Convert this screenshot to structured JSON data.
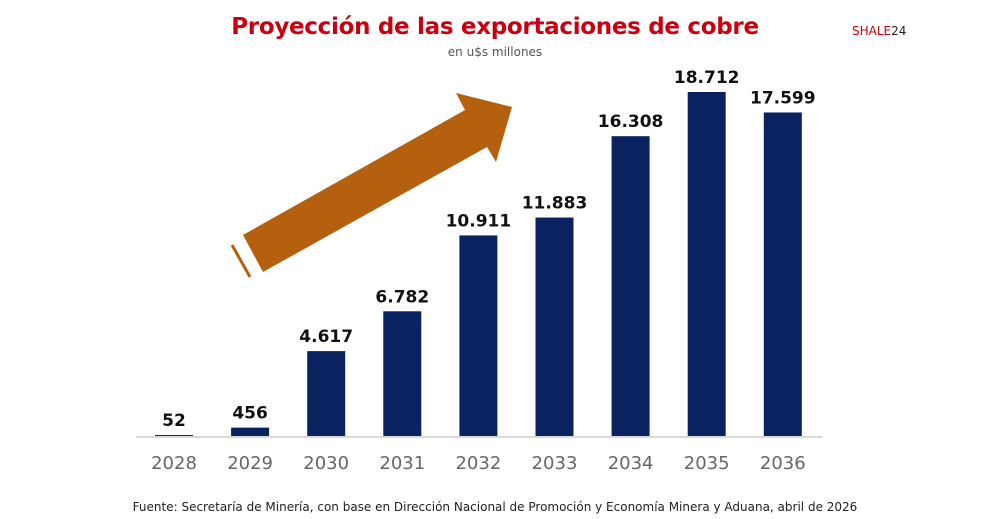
{
  "header": {
    "title": "Proyección de las exportaciones de cobre",
    "subtitle": "en u$s millones",
    "brand_prefix": "SHALE",
    "brand_suffix": "24"
  },
  "footer": {
    "source": "Fuente: Secretaría de Minería, con base en Dirección Nacional de Promoción y Economía Minera y Aduana, abril de 2026"
  },
  "colors": {
    "bar": "#0b2260",
    "arrow": "#b5600f",
    "title": "#c8000f"
  },
  "chart_data": {
    "type": "bar",
    "title": "Proyección de las exportaciones de cobre",
    "subtitle": "en u$s millones",
    "categories": [
      "2028",
      "2029",
      "2030",
      "2031",
      "2032",
      "2033",
      "2034",
      "2035",
      "2036"
    ],
    "values": [
      52,
      456,
      4617,
      6782,
      10911,
      11883,
      16308,
      18712,
      17599
    ],
    "labels": [
      "52",
      "456",
      "4.617",
      "6.782",
      "10.911",
      "11.883",
      "16.308",
      "18.712",
      "17.599"
    ],
    "ylim": [
      0,
      18712
    ],
    "grid": false,
    "legend": "none",
    "annotation": "upward-trend-arrow"
  }
}
